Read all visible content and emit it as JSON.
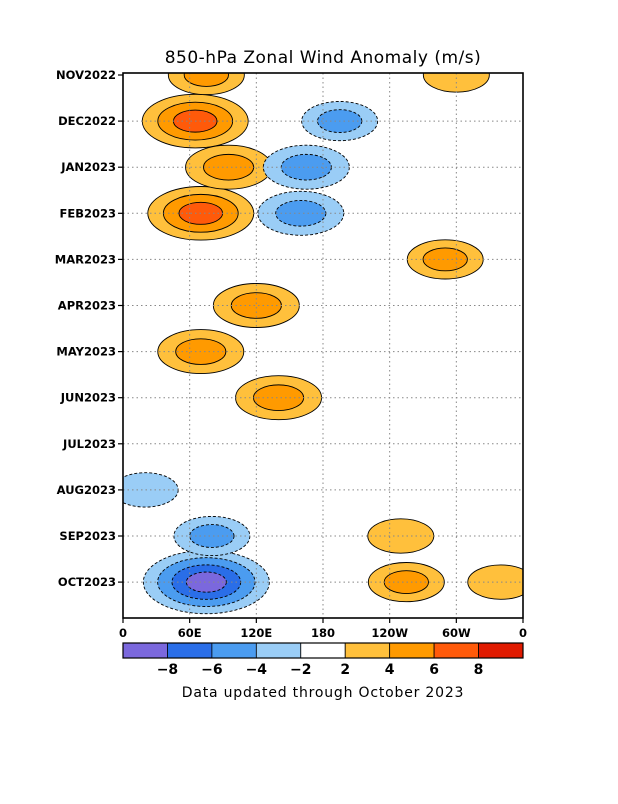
{
  "chart_data": {
    "type": "heatmap",
    "title": "850-hPa Zonal Wind Anomaly (m/s)",
    "footnote": "Data updated through October 2023",
    "y_tick_labels": [
      "NOV2022",
      "DEC2022",
      "JAN2023",
      "FEB2023",
      "MAR2023",
      "APR2023",
      "MAY2023",
      "JUN2023",
      "JUL2023",
      "AUG2023",
      "SEP2023",
      "OCT2023"
    ],
    "x_tick_labels": [
      "0",
      "60E",
      "120E",
      "180",
      "120W",
      "60W",
      "0"
    ],
    "x_range_deg": [
      0,
      360
    ],
    "grid": true,
    "colorbar": {
      "labels": [
        "-8",
        "-6",
        "-4",
        "-2",
        "2",
        "4",
        "6",
        "8"
      ],
      "colors": [
        "#7b68dd",
        "#2a6ee8",
        "#4b9cf0",
        "#9acdf6",
        "#ffffff",
        "#ffc03c",
        "#ff9a00",
        "#ff5a0a",
        "#e01a00"
      ]
    },
    "anomaly_features": [
      {
        "lon": 65,
        "month": "DEC2022",
        "value": 7
      },
      {
        "lon": 70,
        "month": "FEB2023",
        "value": 7
      },
      {
        "lon": 75,
        "month": "NOV2022",
        "value": 4
      },
      {
        "lon": 95,
        "month": "JAN2023",
        "value": 5
      },
      {
        "lon": 120,
        "month": "APR2023",
        "value": 5
      },
      {
        "lon": 140,
        "month": "JUN2023",
        "value": 5
      },
      {
        "lon": 70,
        "month": "MAY2023",
        "value": 5
      },
      {
        "lon": 165,
        "month": "JAN2023",
        "value": -5
      },
      {
        "lon": 160,
        "month": "FEB2023",
        "value": -5
      },
      {
        "lon": 195,
        "month": "DEC2022",
        "value": -4
      },
      {
        "lon": 290,
        "month": "MAR2023",
        "value": 4
      },
      {
        "lon": 300,
        "month": "NOV2022",
        "value": 3
      },
      {
        "lon": 250,
        "month": "SEP2023",
        "value": 3
      },
      {
        "lon": 75,
        "month": "OCT2023",
        "value": -9
      },
      {
        "lon": 80,
        "month": "SEP2023",
        "value": -4
      },
      {
        "lon": 20,
        "month": "AUG2023",
        "value": -3
      },
      {
        "lon": 255,
        "month": "OCT2023",
        "value": 4
      },
      {
        "lon": 340,
        "month": "OCT2023",
        "value": 3
      }
    ]
  }
}
